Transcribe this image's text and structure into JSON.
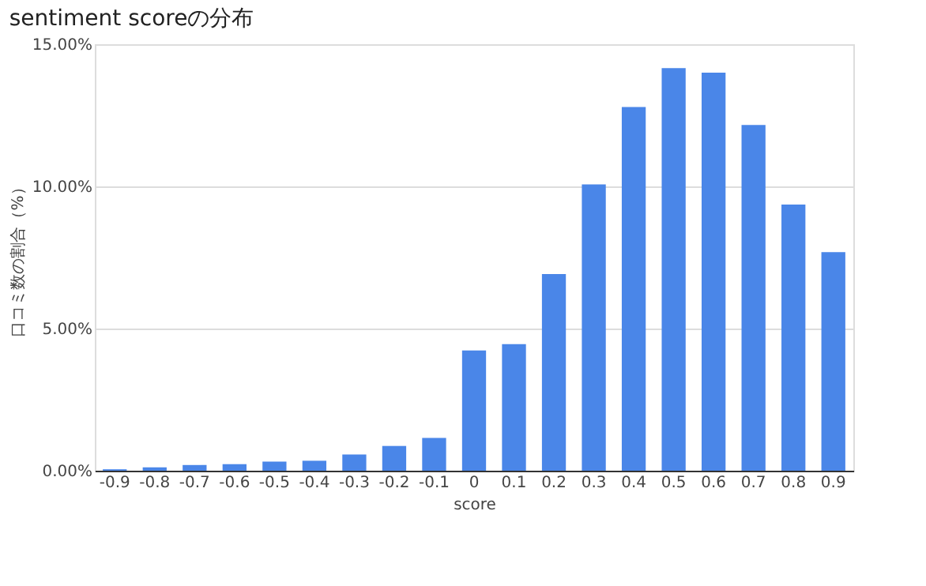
{
  "chart_data": {
    "type": "bar",
    "title": "sentiment scoreの分布",
    "xlabel": "score",
    "ylabel": "口コミ数の割合（%）",
    "categories": [
      "-0.9",
      "-0.8",
      "-0.7",
      "-0.6",
      "-0.5",
      "-0.4",
      "-0.3",
      "-0.2",
      "-0.1",
      "0",
      "0.1",
      "0.2",
      "0.3",
      "0.4",
      "0.5",
      "0.6",
      "0.7",
      "0.8",
      "0.9"
    ],
    "values": [
      0.05,
      0.12,
      0.2,
      0.23,
      0.32,
      0.35,
      0.57,
      0.87,
      1.15,
      4.23,
      4.45,
      6.92,
      10.07,
      12.79,
      14.16,
      14.0,
      12.16,
      9.36,
      7.69
    ],
    "color": "#4a86e8",
    "ylim": [
      0,
      15
    ],
    "yticks": [
      {
        "value": 0,
        "label": "0.00%"
      },
      {
        "value": 5,
        "label": "5.00%"
      },
      {
        "value": 10,
        "label": "10.00%"
      },
      {
        "value": 15,
        "label": "15.00%"
      }
    ],
    "grid": "y"
  }
}
